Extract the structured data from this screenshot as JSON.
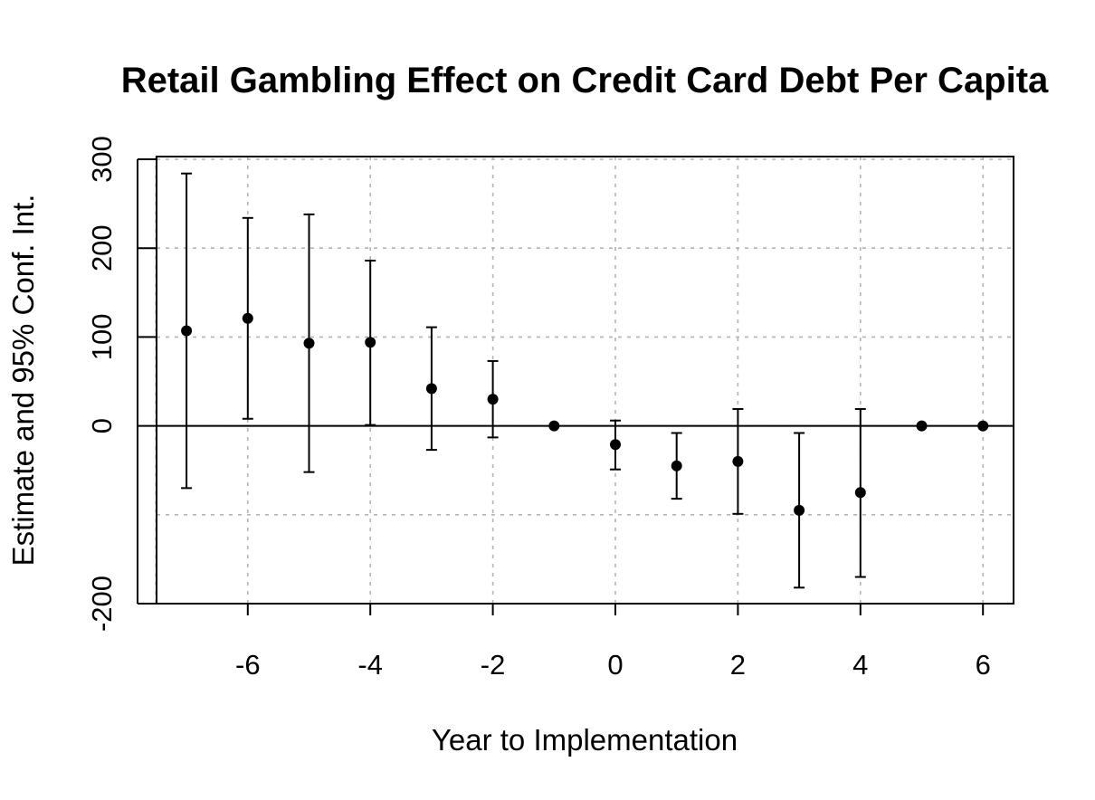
{
  "chart_data": {
    "type": "scatter",
    "title": "Retail Gambling Effect on Credit Card Debt Per Capita",
    "xlabel": "Year to Implementation",
    "ylabel": "Estimate and 95% Conf. Int.",
    "xlim": [
      -7.5,
      6.5
    ],
    "ylim": [
      -200,
      300
    ],
    "xticks": [
      -6,
      -4,
      -2,
      0,
      2,
      4,
      6
    ],
    "xtick_labels": [
      "-6",
      "-4",
      "-2",
      "0",
      "2",
      "4",
      "6"
    ],
    "yticks": [
      -200,
      0,
      100,
      200,
      300
    ],
    "ytick_labels": [
      "-200",
      "0",
      "100",
      "200",
      "300"
    ],
    "grid": true,
    "horizontal_reference_line": 0,
    "error_bars": "95% confidence interval",
    "series": [
      {
        "points": [
          {
            "x": -7,
            "y": 107,
            "lower": -70,
            "upper": 284
          },
          {
            "x": -6,
            "y": 121,
            "lower": 8,
            "upper": 234
          },
          {
            "x": -5,
            "y": 93,
            "lower": -52,
            "upper": 238
          },
          {
            "x": -4,
            "y": 94,
            "lower": 1,
            "upper": 186
          },
          {
            "x": -3,
            "y": 42,
            "lower": -27,
            "upper": 111
          },
          {
            "x": -2,
            "y": 30,
            "lower": -13,
            "upper": 73
          },
          {
            "x": -1,
            "y": 0,
            "lower": 0,
            "upper": 0
          },
          {
            "x": 0,
            "y": -21,
            "lower": -49,
            "upper": 6
          },
          {
            "x": 1,
            "y": -45,
            "lower": -82,
            "upper": -8
          },
          {
            "x": 2,
            "y": -40,
            "lower": -99,
            "upper": 19
          },
          {
            "x": 3,
            "y": -95,
            "lower": -182,
            "upper": -8
          },
          {
            "x": 4,
            "y": -75,
            "lower": -170,
            "upper": 19
          },
          {
            "x": 5,
            "y": 0,
            "lower": 0,
            "upper": 0
          },
          {
            "x": 6,
            "y": 0,
            "lower": 0,
            "upper": 0
          }
        ]
      }
    ]
  }
}
